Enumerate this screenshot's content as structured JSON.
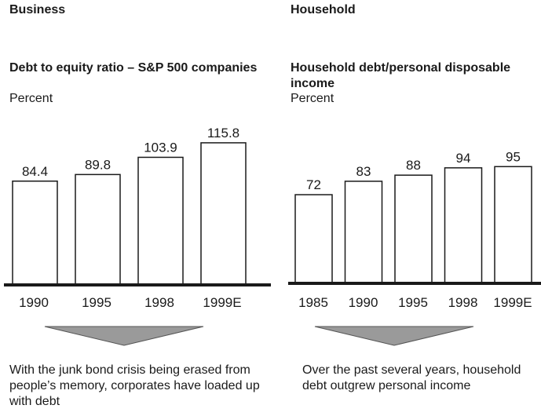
{
  "panels": [
    {
      "section": "Business",
      "chart_title": "Debt to equity ratio – S&P 500 companies",
      "unit": "Percent",
      "caption": "With the junk bond crisis being erased from people’s memory, corporates have loaded up with debt"
    },
    {
      "section": "Household",
      "chart_title": "Household debt/personal disposable income",
      "unit": "Percent",
      "caption": "Over the past several years, household debt outgrew personal income"
    }
  ],
  "chart_data": [
    {
      "type": "bar",
      "title": "Debt to equity ratio – S&P 500 companies",
      "ylabel": "Percent",
      "categories": [
        "1990",
        "1995",
        "1998",
        "1999E"
      ],
      "values": [
        84.4,
        89.8,
        103.9,
        115.8
      ],
      "value_labels": [
        "84.4",
        "89.8",
        "103.9",
        "115.8"
      ],
      "ylim": [
        0,
        120
      ]
    },
    {
      "type": "bar",
      "title": "Household debt/personal disposable income",
      "ylabel": "Percent",
      "categories": [
        "1985",
        "1990",
        "1995",
        "1998",
        "1999E"
      ],
      "values": [
        72,
        83,
        88,
        94,
        95
      ],
      "value_labels": [
        "72",
        "83",
        "88",
        "94",
        "95"
      ],
      "ylim": [
        0,
        98
      ]
    }
  ],
  "colors": {
    "bar_fill": "#ffffff",
    "bar_stroke": "#1a1a1a",
    "baseline": "#1a1a1a",
    "arrow_fill": "#9a9a9a"
  }
}
